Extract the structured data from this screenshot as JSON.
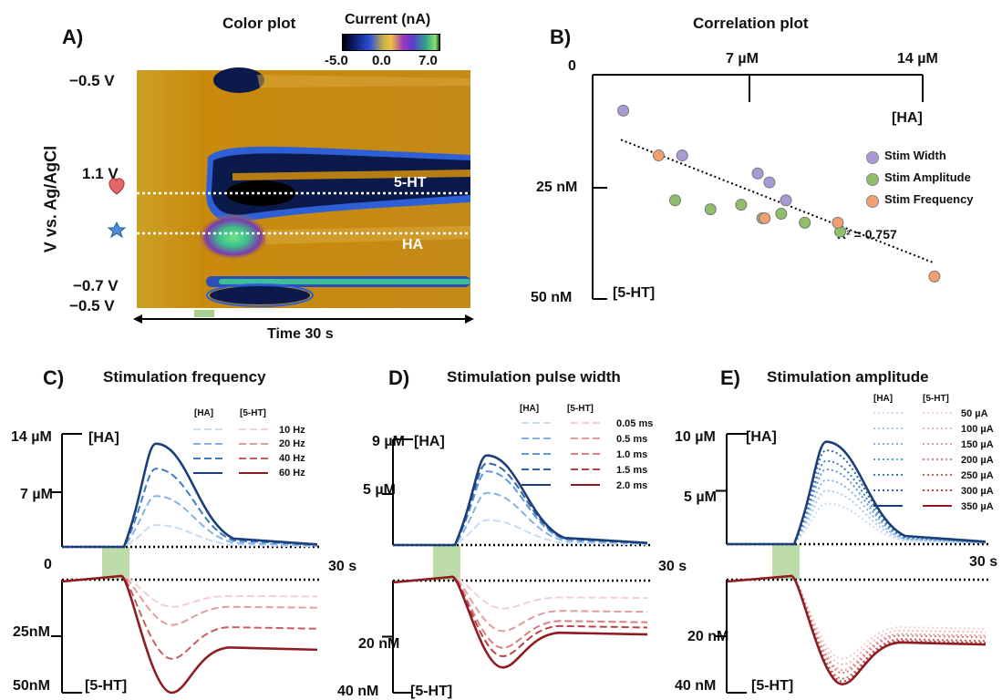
{
  "panels": {
    "a_label": "A)",
    "b_label": "B)",
    "c_label": "C)",
    "d_label": "D)",
    "e_label": "E)"
  },
  "color_plot": {
    "title": "Color plot",
    "colorbar_title": "Current (nA)",
    "colorbar_ticks": [
      "-5.0",
      "0.0",
      "7.0"
    ],
    "y_axis_title": "V vs. Ag/AgCl",
    "y_ticks": [
      "−0.5 V",
      "1.1 V",
      "−0.7 V",
      "−0.5 V"
    ],
    "x_axis_title": "Time 30 s",
    "label_5ht": "5-HT",
    "label_ha": "HA",
    "heart_icon": "heart-icon",
    "star_icon": "star-icon",
    "colors": {
      "background": "#c98a0c",
      "negative": "#0b1a4a",
      "positive_mid": "#8e2fa8",
      "positive_high": "#3dbf8a"
    }
  },
  "chart_data": [
    {
      "type": "scatter",
      "title": "Correlation plot",
      "x_axis": {
        "label": "[HA]",
        "ticks": [
          "0",
          "7 µM",
          "14 µM"
        ],
        "range_uM": [
          0,
          14
        ]
      },
      "y_axis": {
        "label": "[5-HT]",
        "ticks": [
          "25 nM",
          "50 nM"
        ],
        "range_nM": [
          0,
          50
        ],
        "inverted": true
      },
      "series": [
        {
          "name": "Stim Width",
          "color": "#a99ad6",
          "points": [
            [
              1.3,
              8
            ],
            [
              3.8,
              18
            ],
            [
              7.0,
              22
            ],
            [
              7.5,
              24
            ],
            [
              8.2,
              28
            ]
          ]
        },
        {
          "name": "Stim Amplitude",
          "color": "#8fbf6a",
          "points": [
            [
              3.5,
              28
            ],
            [
              5.0,
              30
            ],
            [
              6.3,
              29
            ],
            [
              7.2,
              32
            ],
            [
              8.0,
              31
            ],
            [
              9.0,
              33
            ],
            [
              10.5,
              35
            ]
          ]
        },
        {
          "name": "Stim Frequency",
          "color": "#f2a070",
          "points": [
            [
              2.8,
              18
            ],
            [
              7.3,
              32
            ],
            [
              10.4,
              33
            ],
            [
              14.5,
              45
            ]
          ]
        }
      ],
      "trendline": {
        "from": [
          1.2,
          14.5
        ],
        "to": [
          14.5,
          42
        ],
        "r2_label": "R² = 0.757"
      }
    },
    {
      "type": "line",
      "title": "Stimulation frequency",
      "ha_label": "[HA]",
      "ht_label": "[5-HT]",
      "y_top_ticks": [
        "14 µM",
        "7 µM",
        "0"
      ],
      "y_bottom_ticks": [
        "25nM",
        "50nM"
      ],
      "x_end_label": "30 s",
      "legend_labels": [
        "10 Hz",
        "20 Hz",
        "40 Hz",
        "60 Hz"
      ],
      "ha_peaks_uM": [
        2.8,
        6.5,
        10.0,
        13.2
      ],
      "ht_troughs_nM": [
        12,
        20,
        35,
        50
      ],
      "ymax_uM": 14,
      "ymax_nM": 50
    },
    {
      "type": "line",
      "title": "Stimulation pulse width",
      "ha_label": "[HA]",
      "ht_label": "[5-HT]",
      "y_top_ticks": [
        "9 µM",
        "5 µM"
      ],
      "y_bottom_ticks": [
        "20 nM",
        "40 nM"
      ],
      "x_end_label": "30 s",
      "legend_labels": [
        "0.05 ms",
        "0.5 ms",
        "1.0 ms",
        "1.5 ms",
        "2.0 ms"
      ],
      "ha_peaks_uM": [
        2.2,
        4.6,
        6.5,
        7.2,
        7.9
      ],
      "ht_troughs_nM": [
        10,
        18,
        24,
        27,
        31
      ],
      "ymax_uM": 9,
      "ymax_nM": 40
    },
    {
      "type": "line",
      "title": "Stimulation amplitude",
      "ha_label": "[HA]",
      "ht_label": "[5-HT]",
      "y_top_ticks": [
        "10 µM",
        "5 µM"
      ],
      "y_bottom_ticks": [
        "20 nM",
        "40 nM"
      ],
      "x_end_label": "30 s",
      "legend_labels": [
        "50 µA",
        "100 µA",
        "150 µA",
        "200 µA",
        "250 µA",
        "300 µA",
        "350 µA"
      ],
      "ha_peaks_uM": [
        3.8,
        5.0,
        6.0,
        7.0,
        7.8,
        8.8,
        9.6
      ],
      "ht_troughs_nM": [
        28,
        30,
        32,
        33,
        35,
        36,
        37
      ],
      "ymax_uM": 10,
      "ymax_nM": 40
    }
  ],
  "shared": {
    "legend_head_ha": "[HA]",
    "legend_head_ht": "[5-HT]",
    "stim_color": "#a8d08d",
    "ha_palette": [
      "#c8dcf2",
      "#a9c9ec",
      "#86b3e3",
      "#5f98d6",
      "#3c7cc5",
      "#2f64aa",
      "#1c3f7a"
    ],
    "ht_palette": [
      "#f3d1d1",
      "#ecb8b8",
      "#e29d9d",
      "#d97f80",
      "#c85e60",
      "#b84245",
      "#8e1c22"
    ]
  }
}
